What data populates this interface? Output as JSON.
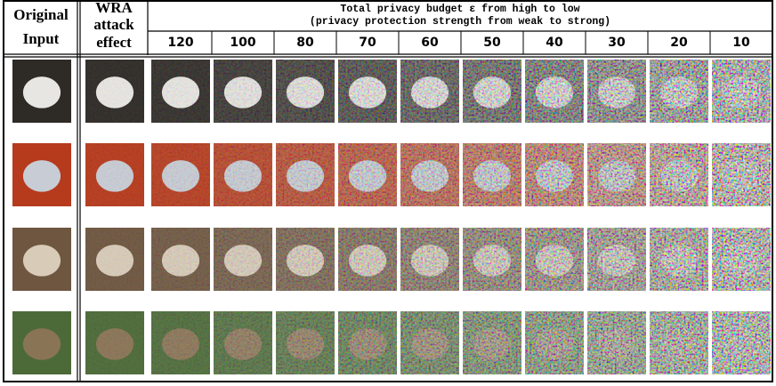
{
  "header": {
    "original_input": [
      "Original",
      "Input"
    ],
    "wra": [
      "WRA",
      "attack",
      "effect"
    ],
    "budget_title": "Total privacy budget ε from high to low",
    "budget_subtitle": "(privacy protection strength from weak to strong)",
    "epsilons": [
      120,
      100,
      80,
      70,
      60,
      50,
      40,
      30,
      20,
      10
    ]
  }
}
